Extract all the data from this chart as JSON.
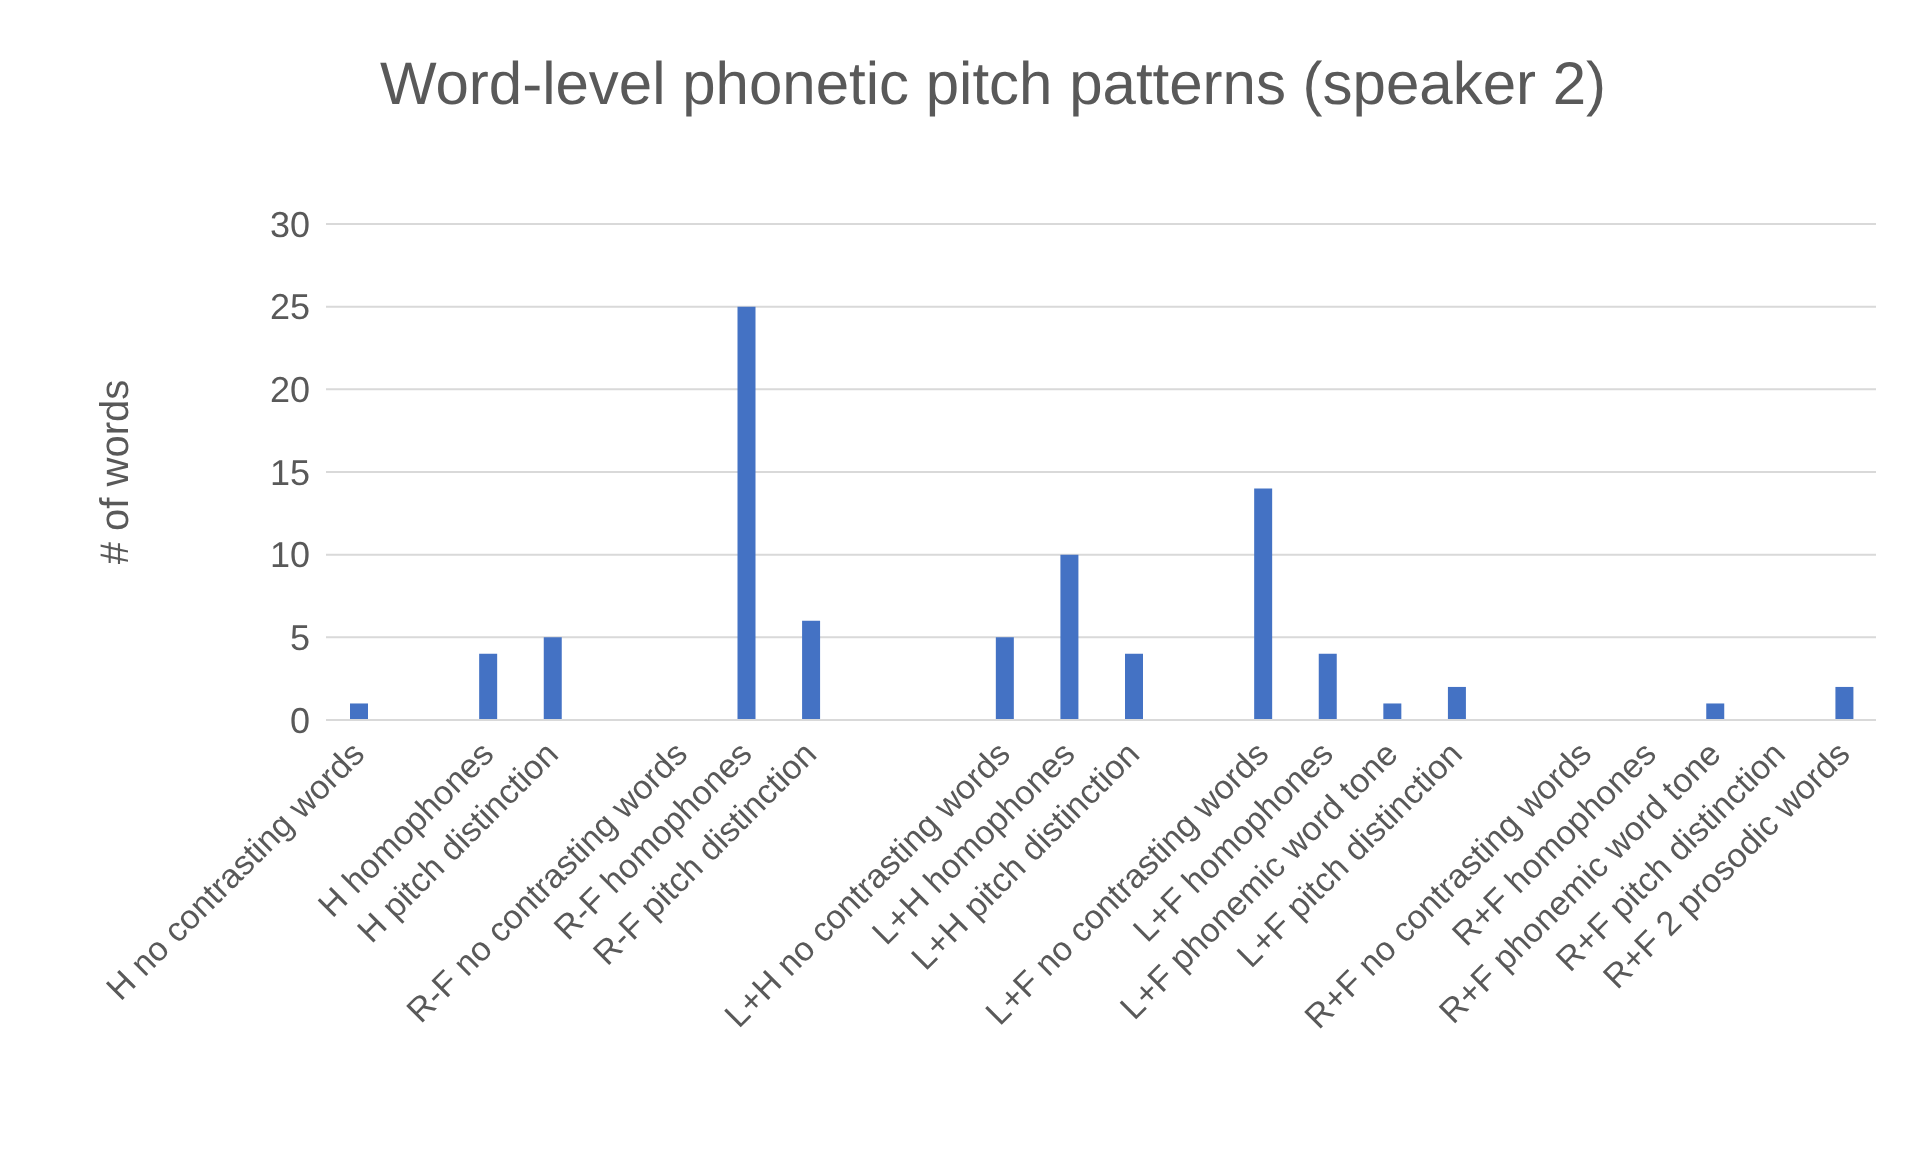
{
  "chart_data": {
    "type": "bar",
    "title": "Word-level phonetic pitch patterns (speaker 2)",
    "ylabel": "# of words",
    "categories": [
      "H no contrasting words",
      null,
      "H homophones",
      "H pitch distinction",
      null,
      "R-F no contrasting words",
      "R-F homophones",
      "R-F pitch distinction",
      null,
      null,
      "L+H no contrasting words",
      "L+H homophones",
      "L+H pitch distinction",
      null,
      "L+F no contrasting words",
      "L+F homophones",
      "L+F phonemic word tone",
      "L+F pitch distinction",
      null,
      "R+F no contrasting words",
      "R+F homophones",
      "R+F phonemic word tone",
      "R+F pitch distinction",
      "R+F 2 prosodic words"
    ],
    "values": [
      1,
      null,
      4,
      5,
      null,
      0,
      25,
      6,
      null,
      null,
      5,
      10,
      4,
      null,
      14,
      4,
      1,
      2,
      null,
      0,
      0,
      1,
      0,
      2
    ],
    "color": "#4472c4",
    "ylim": [
      0,
      30
    ],
    "yticks": [
      0,
      5,
      10,
      15,
      20,
      25,
      30
    ],
    "grid": "y"
  }
}
